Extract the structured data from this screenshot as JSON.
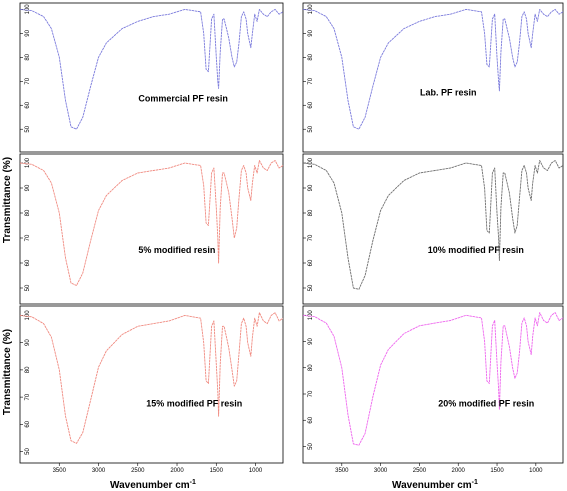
{
  "chart_data": [
    {
      "type": "line",
      "label": "Commercial PF resin",
      "color": "#7b7bdc",
      "xlim": [
        4000,
        650
      ],
      "ylim": [
        43,
        101
      ],
      "yticks": [
        50,
        60,
        70,
        80,
        90,
        100
      ],
      "xticks": [],
      "x": [
        4000,
        3850,
        3700,
        3600,
        3500,
        3420,
        3350,
        3280,
        3200,
        3100,
        3000,
        2900,
        2700,
        2500,
        2300,
        2100,
        2000,
        1900,
        1800,
        1700,
        1660,
        1630,
        1600,
        1560,
        1530,
        1500,
        1480,
        1470,
        1450,
        1420,
        1400,
        1370,
        1340,
        1300,
        1270,
        1240,
        1210,
        1180,
        1150,
        1120,
        1100,
        1060,
        1040,
        1010,
        980,
        950,
        900,
        850,
        800,
        750,
        700,
        650
      ],
      "y": [
        100,
        99.5,
        97,
        92,
        80,
        62,
        51,
        50,
        55,
        68,
        80,
        86,
        92,
        95,
        97,
        98,
        99,
        100,
        99.5,
        99,
        90,
        75,
        74,
        96,
        98,
        80,
        70,
        67,
        82,
        96,
        96,
        92,
        88,
        80,
        76,
        78,
        86,
        97,
        99,
        96,
        90,
        84,
        90,
        98,
        95,
        100,
        98,
        97,
        99,
        100,
        98,
        99
      ]
    },
    {
      "type": "line",
      "label": "Lab. PF resin",
      "color": "#7b7bdc",
      "xlim": [
        4000,
        650
      ],
      "ylim": [
        43,
        101
      ],
      "yticks": [
        50,
        60,
        70,
        80,
        90,
        100
      ],
      "xticks": [],
      "x": [
        4000,
        3850,
        3700,
        3600,
        3500,
        3420,
        3350,
        3280,
        3200,
        3100,
        3000,
        2900,
        2700,
        2500,
        2300,
        2100,
        2000,
        1900,
        1800,
        1700,
        1660,
        1630,
        1600,
        1560,
        1530,
        1500,
        1480,
        1470,
        1450,
        1420,
        1400,
        1370,
        1340,
        1300,
        1270,
        1240,
        1210,
        1180,
        1150,
        1120,
        1100,
        1060,
        1040,
        1010,
        980,
        950,
        900,
        850,
        800,
        750,
        700,
        650
      ],
      "y": [
        100,
        99.5,
        97,
        92,
        80,
        62,
        51,
        50,
        55,
        68,
        80,
        86,
        92,
        95,
        97,
        98,
        99,
        100,
        99.5,
        99,
        90,
        77,
        76,
        96,
        98,
        80,
        70,
        66,
        82,
        96,
        96,
        92,
        88,
        80,
        76,
        78,
        86,
        97,
        99,
        96,
        90,
        84,
        90,
        98,
        95,
        100,
        98,
        97,
        99,
        100,
        98,
        99
      ]
    },
    {
      "type": "line",
      "label": "5% modified resin",
      "color": "#f08a80",
      "xlim": [
        4000,
        650
      ],
      "ylim": [
        46,
        102
      ],
      "yticks": [
        50,
        60,
        70,
        80,
        90,
        100
      ],
      "xticks": [],
      "x": [
        4000,
        3850,
        3700,
        3600,
        3500,
        3420,
        3350,
        3280,
        3200,
        3100,
        3000,
        2900,
        2700,
        2500,
        2300,
        2100,
        2000,
        1900,
        1800,
        1700,
        1660,
        1630,
        1600,
        1560,
        1530,
        1500,
        1480,
        1470,
        1450,
        1420,
        1400,
        1370,
        1340,
        1300,
        1270,
        1240,
        1210,
        1180,
        1150,
        1120,
        1100,
        1060,
        1040,
        1010,
        980,
        950,
        900,
        850,
        800,
        750,
        700,
        650
      ],
      "y": [
        100,
        99.5,
        97,
        92,
        80,
        62,
        52,
        51,
        56,
        69,
        81,
        87,
        93,
        96,
        97,
        98,
        99,
        100,
        99.5,
        99,
        91,
        76,
        75,
        96,
        98,
        82,
        70,
        60,
        82,
        96,
        96,
        92,
        88,
        78,
        70,
        74,
        86,
        97,
        99,
        96,
        90,
        85,
        92,
        99,
        96,
        101,
        98,
        97,
        100,
        101,
        98,
        99
      ]
    },
    {
      "type": "line",
      "label": "10% modified PF resin",
      "color": "#707070",
      "xlim": [
        4000,
        650
      ],
      "ylim": [
        46,
        102
      ],
      "yticks": [
        50,
        60,
        70,
        80,
        90,
        100
      ],
      "xticks": [],
      "x": [
        4000,
        3850,
        3700,
        3600,
        3500,
        3420,
        3350,
        3280,
        3200,
        3100,
        3000,
        2900,
        2700,
        2500,
        2300,
        2100,
        2000,
        1900,
        1800,
        1700,
        1660,
        1630,
        1600,
        1560,
        1530,
        1500,
        1480,
        1470,
        1450,
        1420,
        1400,
        1370,
        1340,
        1300,
        1270,
        1240,
        1210,
        1180,
        1150,
        1120,
        1100,
        1060,
        1040,
        1010,
        980,
        950,
        900,
        850,
        800,
        750,
        700,
        650
      ],
      "y": [
        100,
        99.5,
        97,
        92,
        80,
        62,
        50,
        49.5,
        55,
        69,
        81,
        87,
        93,
        96,
        97,
        98,
        99,
        100,
        99.5,
        99,
        90,
        73,
        72,
        96,
        98,
        80,
        70,
        61,
        82,
        96,
        96,
        92,
        88,
        78,
        72,
        75,
        86,
        97,
        99,
        96,
        90,
        85,
        92,
        99,
        96,
        101,
        98,
        97,
        100,
        101,
        98,
        99
      ]
    },
    {
      "type": "line",
      "label": "15% modified PF resin",
      "color": "#f08a80",
      "xlim": [
        4000,
        650
      ],
      "ylim": [
        48,
        102
      ],
      "yticks": [
        50,
        60,
        70,
        80,
        90,
        100
      ],
      "xticks": [
        3500,
        3000,
        2500,
        2000,
        1500,
        1000
      ],
      "x": [
        4000,
        3850,
        3700,
        3600,
        3500,
        3420,
        3350,
        3280,
        3200,
        3100,
        3000,
        2900,
        2700,
        2500,
        2300,
        2100,
        2000,
        1900,
        1800,
        1700,
        1660,
        1630,
        1600,
        1560,
        1530,
        1500,
        1480,
        1470,
        1450,
        1420,
        1400,
        1370,
        1340,
        1300,
        1270,
        1240,
        1210,
        1180,
        1150,
        1120,
        1100,
        1060,
        1040,
        1010,
        980,
        950,
        900,
        850,
        800,
        750,
        700,
        650
      ],
      "y": [
        100,
        99.5,
        97,
        92,
        80,
        63,
        54,
        53,
        57,
        69,
        81,
        87,
        93,
        96,
        97,
        98,
        99,
        100,
        99.5,
        99,
        90,
        76,
        75,
        96,
        98,
        82,
        72,
        63,
        82,
        96,
        96,
        92,
        88,
        80,
        74,
        76,
        86,
        97,
        99,
        96,
        90,
        85,
        92,
        99,
        96,
        101,
        98,
        97,
        100,
        101,
        98,
        99
      ]
    },
    {
      "type": "line",
      "label": "20% modified PF resin",
      "color": "#ee66ee",
      "xlim": [
        4000,
        650
      ],
      "ylim": [
        46,
        102
      ],
      "yticks": [
        50,
        60,
        70,
        80,
        90,
        100
      ],
      "xticks": [
        3500,
        3000,
        2500,
        2000,
        1500,
        1000
      ],
      "x": [
        4000,
        3850,
        3700,
        3600,
        3500,
        3420,
        3350,
        3280,
        3200,
        3100,
        3000,
        2900,
        2700,
        2500,
        2300,
        2100,
        2000,
        1900,
        1800,
        1700,
        1660,
        1630,
        1600,
        1560,
        1530,
        1500,
        1480,
        1470,
        1450,
        1420,
        1400,
        1370,
        1340,
        1300,
        1270,
        1240,
        1210,
        1180,
        1150,
        1120,
        1100,
        1060,
        1040,
        1010,
        980,
        950,
        900,
        850,
        800,
        750,
        700,
        650
      ],
      "y": [
        100,
        99.5,
        97,
        92,
        80,
        62,
        51,
        50.5,
        55,
        69,
        81,
        87,
        93,
        96,
        97,
        98,
        99,
        100,
        99.5,
        99,
        90,
        75,
        74,
        96,
        98,
        82,
        72,
        64,
        82,
        96,
        96,
        92,
        88,
        80,
        76,
        78,
        86,
        97,
        99,
        96,
        90,
        85,
        92,
        99,
        96,
        101,
        98,
        97,
        100,
        101,
        98,
        99
      ]
    }
  ],
  "axes": {
    "ylabel": "Transmittance (%)",
    "xlabel": "Wavenumber cm",
    "xlabel_sup": "-1"
  }
}
